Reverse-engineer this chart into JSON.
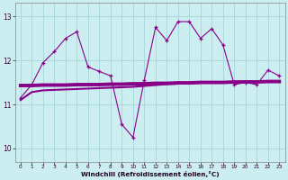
{
  "xlabel": "Windchill (Refroidissement éolien,°C)",
  "background_color": "#cceef0",
  "grid_color": "#aad8dc",
  "line_color": "#880088",
  "ylim": [
    9.7,
    13.3
  ],
  "xlim": [
    -0.5,
    23.5
  ],
  "yticks": [
    10,
    11,
    12,
    13
  ],
  "xticks": [
    0,
    1,
    2,
    3,
    4,
    5,
    6,
    7,
    8,
    9,
    10,
    11,
    12,
    13,
    14,
    15,
    16,
    17,
    18,
    19,
    20,
    21,
    22,
    23
  ],
  "windchill_y": [
    11.15,
    11.45,
    11.95,
    12.2,
    12.5,
    12.65,
    11.85,
    11.75,
    11.65,
    10.55,
    10.25,
    11.55,
    12.75,
    12.45,
    12.88,
    12.88,
    12.5,
    12.72,
    12.35,
    11.45,
    11.5,
    11.45,
    11.78,
    11.65
  ],
  "actual_y": [
    11.1,
    11.28,
    11.32,
    11.33,
    11.34,
    11.35,
    11.36,
    11.37,
    11.38,
    11.39,
    11.4,
    11.42,
    11.44,
    11.46,
    11.47,
    11.48,
    11.49,
    11.5,
    11.51,
    11.51,
    11.52,
    11.52,
    11.53,
    11.53
  ],
  "trend_y": [
    11.43,
    11.43,
    11.44,
    11.44,
    11.44,
    11.45,
    11.45,
    11.45,
    11.46,
    11.46,
    11.47,
    11.47,
    11.48,
    11.48,
    11.49,
    11.49,
    11.5,
    11.5,
    11.5,
    11.51,
    11.51,
    11.51,
    11.52,
    11.52
  ]
}
